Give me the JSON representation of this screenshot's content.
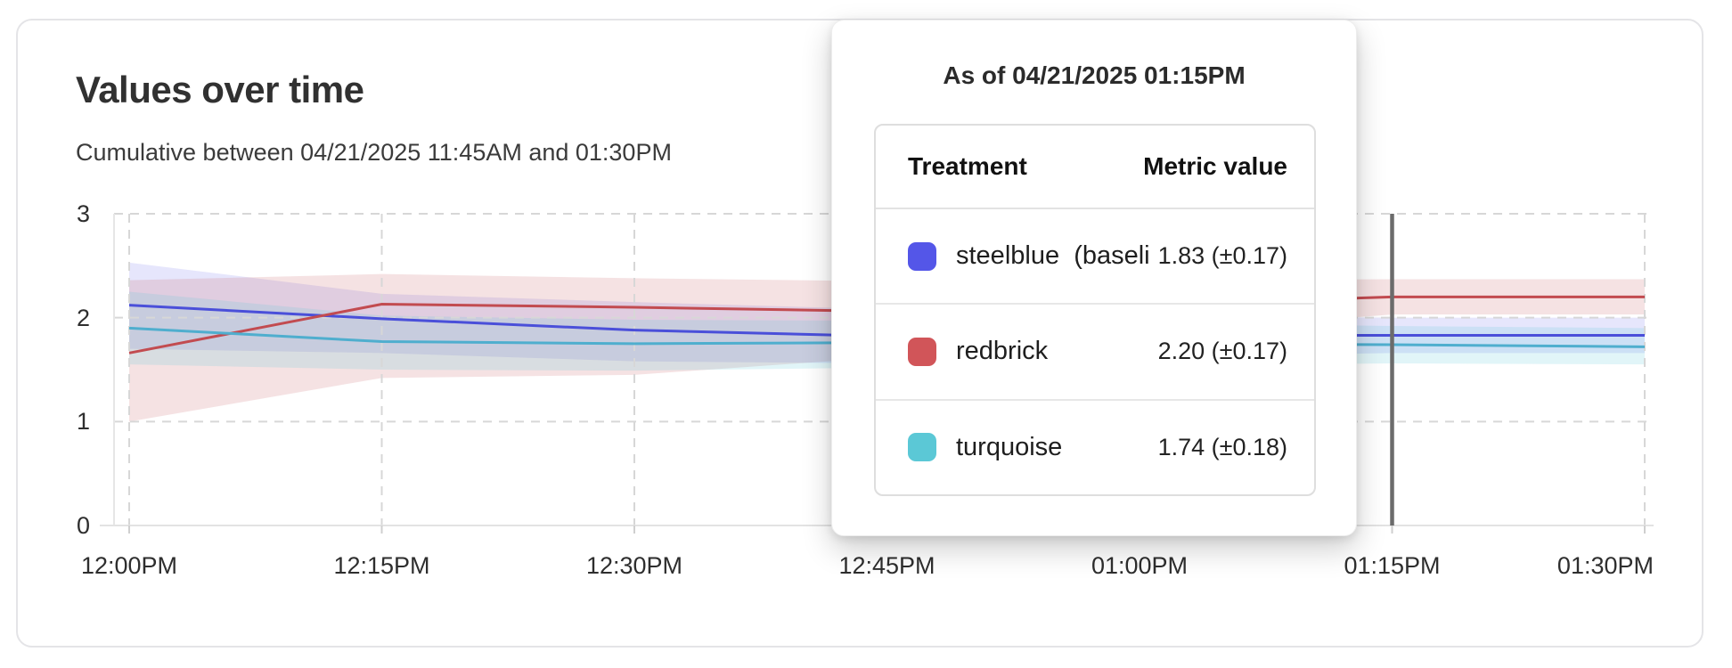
{
  "card": {
    "title": "Values over time",
    "subtitle": "Cumulative between 04/21/2025 11:45AM and 01:30PM"
  },
  "tooltip": {
    "title": "As of 04/21/2025 01:15PM",
    "columns": {
      "treatment": "Treatment",
      "metric": "Metric value"
    },
    "rows": [
      {
        "swatch_color": "#5456e8",
        "label": "steelblue  (baseli",
        "value": "1.83 (±0.17)"
      },
      {
        "swatch_color": "#d15559",
        "label": "redbrick",
        "value": "2.20 (±0.17)"
      },
      {
        "swatch_color": "#5bc8d6",
        "label": "turquoise",
        "value": "1.74 (±0.18)"
      }
    ]
  },
  "chart_data": {
    "type": "line",
    "title": "Values over time",
    "subtitle": "Cumulative between 04/21/2025 11:45AM and 01:30PM",
    "x_tick_labels": [
      "12:00PM",
      "12:15PM",
      "12:30PM",
      "12:45PM",
      "01:00PM",
      "01:15PM",
      "01:30PM"
    ],
    "y_ticks": [
      0,
      1,
      2,
      3
    ],
    "ylim": [
      0,
      3
    ],
    "grid": "dashed",
    "crosshair_index": 5,
    "crosshair_label": "01:15PM",
    "crosshair_color": "#6b6b6b",
    "series": [
      {
        "name": "steelblue (baseline)",
        "color": "#4a4fd9",
        "band_color": "rgba(84,86,232,0.15)",
        "values": [
          2.12,
          1.99,
          1.88,
          1.82,
          1.83,
          1.83,
          1.83
        ],
        "upper": [
          2.53,
          2.23,
          2.15,
          2.08,
          2.02,
          2.0,
          2.0
        ],
        "lower": [
          1.7,
          1.66,
          1.58,
          1.56,
          1.62,
          1.66,
          1.66
        ]
      },
      {
        "name": "redbrick",
        "color": "#c24b50",
        "band_color": "rgba(194,75,80,0.16)",
        "values": [
          1.66,
          2.13,
          2.1,
          2.06,
          2.12,
          2.2,
          2.2
        ],
        "upper": [
          2.36,
          2.42,
          2.38,
          2.35,
          2.36,
          2.37,
          2.37
        ],
        "lower": [
          1.0,
          1.42,
          1.45,
          1.62,
          1.85,
          2.03,
          2.03
        ]
      },
      {
        "name": "turquoise",
        "color": "#4faece",
        "band_color": "rgba(91,200,214,0.18)",
        "values": [
          1.9,
          1.77,
          1.75,
          1.76,
          1.75,
          1.74,
          1.72
        ],
        "upper": [
          2.25,
          2.02,
          1.98,
          1.97,
          1.95,
          1.92,
          1.9
        ],
        "lower": [
          1.55,
          1.5,
          1.49,
          1.52,
          1.54,
          1.56,
          1.55
        ]
      }
    ]
  }
}
